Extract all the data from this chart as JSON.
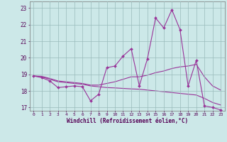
{
  "xlabel": "Windchill (Refroidissement éolien,°C)",
  "background_color": "#cce8e8",
  "grid_color": "#99bbbb",
  "line_color": "#993399",
  "x_values": [
    0,
    1,
    2,
    3,
    4,
    5,
    6,
    7,
    8,
    9,
    10,
    11,
    12,
    13,
    14,
    15,
    16,
    17,
    18,
    19,
    20,
    21,
    22,
    23
  ],
  "y_main": [
    18.9,
    18.8,
    18.6,
    18.2,
    18.25,
    18.3,
    18.25,
    17.4,
    17.8,
    19.4,
    19.5,
    20.1,
    20.55,
    18.3,
    19.95,
    22.4,
    21.8,
    22.9,
    21.7,
    18.3,
    19.85,
    17.1,
    17.0,
    16.85
  ],
  "y_trend1": [
    18.9,
    18.88,
    18.75,
    18.6,
    18.55,
    18.5,
    18.45,
    18.35,
    18.35,
    18.45,
    18.55,
    18.7,
    18.85,
    18.85,
    18.95,
    19.1,
    19.2,
    19.35,
    19.45,
    19.5,
    19.6,
    18.85,
    18.3,
    18.05
  ],
  "y_trend2": [
    18.9,
    18.85,
    18.7,
    18.55,
    18.5,
    18.45,
    18.4,
    18.3,
    18.25,
    18.2,
    18.18,
    18.15,
    18.12,
    18.1,
    18.05,
    18.0,
    17.95,
    17.9,
    17.85,
    17.8,
    17.75,
    17.55,
    17.3,
    17.15
  ],
  "ylim": [
    16.8,
    23.4
  ],
  "yticks": [
    17,
    18,
    19,
    20,
    21,
    22,
    23
  ],
  "xlim": [
    0,
    23
  ],
  "xticks": [
    0,
    1,
    2,
    3,
    4,
    5,
    6,
    7,
    8,
    9,
    10,
    11,
    12,
    13,
    14,
    15,
    16,
    17,
    18,
    19,
    20,
    21,
    22,
    23
  ]
}
